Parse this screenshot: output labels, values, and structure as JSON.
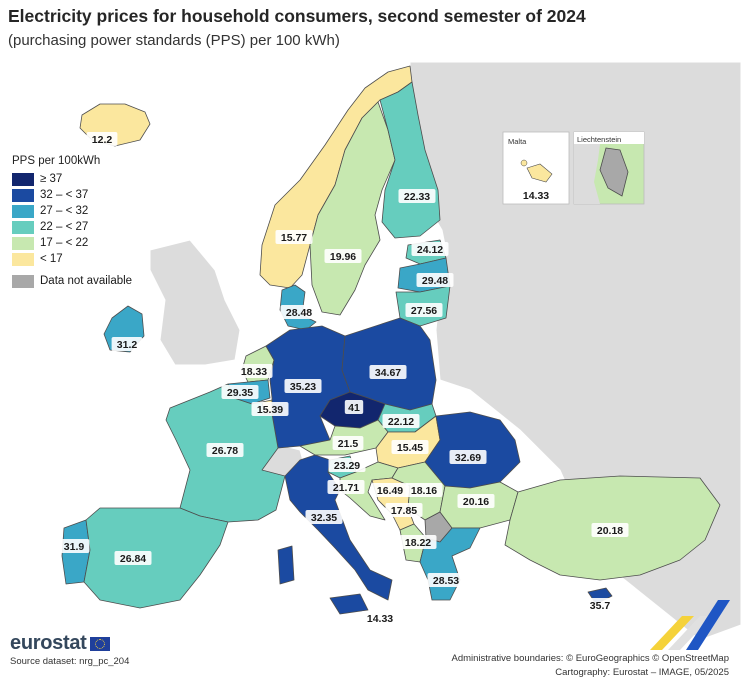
{
  "title": "Electricity prices for household consumers, second semester of 2024",
  "subtitle": "(purchasing power standards (PPS) per 100 kWh)",
  "legend": {
    "title": "PPS per 100kWh",
    "classes": [
      {
        "label": "≥ 37",
        "color": "#12266e"
      },
      {
        "label": "32 – < 37",
        "color": "#1b4aa1"
      },
      {
        "label": "27 – < 32",
        "color": "#3aa7c7"
      },
      {
        "label": "22 – < 27",
        "color": "#66cdbe"
      },
      {
        "label": "17 – < 22",
        "color": "#c7e8b0"
      },
      {
        "label": "< 17",
        "color": "#fbe79e"
      }
    ],
    "na_label": "Data not available",
    "na_color": "#a8a8a8"
  },
  "countries": [
    {
      "code": "IS",
      "value": "12.2"
    },
    {
      "code": "NO",
      "value": "15.77"
    },
    {
      "code": "SE",
      "value": "19.96"
    },
    {
      "code": "FI",
      "value": "22.33"
    },
    {
      "code": "EE",
      "value": "24.12"
    },
    {
      "code": "LV",
      "value": "29.48"
    },
    {
      "code": "LT",
      "value": "27.56"
    },
    {
      "code": "DK",
      "value": "28.48"
    },
    {
      "code": "IE",
      "value": "31.2"
    },
    {
      "code": "NL",
      "value": "18.33"
    },
    {
      "code": "BE",
      "value": "29.35"
    },
    {
      "code": "LU",
      "value": "15.39"
    },
    {
      "code": "DE",
      "value": "35.23"
    },
    {
      "code": "PL",
      "value": "34.67"
    },
    {
      "code": "CZ",
      "value": "41"
    },
    {
      "code": "SK",
      "value": "22.12"
    },
    {
      "code": "AT",
      "value": "21.5"
    },
    {
      "code": "HU",
      "value": "15.45"
    },
    {
      "code": "RO",
      "value": "32.69"
    },
    {
      "code": "FR",
      "value": "26.78"
    },
    {
      "code": "SI",
      "value": "23.29"
    },
    {
      "code": "HR",
      "value": "21.71"
    },
    {
      "code": "BA",
      "value": "16.49"
    },
    {
      "code": "RS",
      "value": "18.16"
    },
    {
      "code": "BG",
      "value": "20.16"
    },
    {
      "code": "ME",
      "value": "17.85"
    },
    {
      "code": "IT",
      "value": "32.35"
    },
    {
      "code": "AL",
      "value": "18.22"
    },
    {
      "code": "PT",
      "value": "31.9"
    },
    {
      "code": "ES",
      "value": "26.84"
    },
    {
      "code": "TR",
      "value": "20.18"
    },
    {
      "code": "EL",
      "value": "28.53"
    },
    {
      "code": "CY",
      "value": "35.7"
    },
    {
      "code": "MT",
      "value": "14.33"
    }
  ],
  "insets": {
    "malta": {
      "title": "Malta",
      "value": "14.33"
    },
    "liechtenstein": {
      "title": "Liechtenstein"
    }
  },
  "footer": {
    "logo": "eurostat",
    "source": "Source dataset: nrg_pc_204",
    "boundaries": "Administrative boundaries: © EuroGeographics © OpenStreetMap",
    "cartography": "Cartography: Eurostat – IMAGE, 05/2025"
  },
  "colors": {
    "sea": "#ffffff",
    "non_eu_land": "#dcdcdc",
    "border": "#4d4d4d"
  }
}
